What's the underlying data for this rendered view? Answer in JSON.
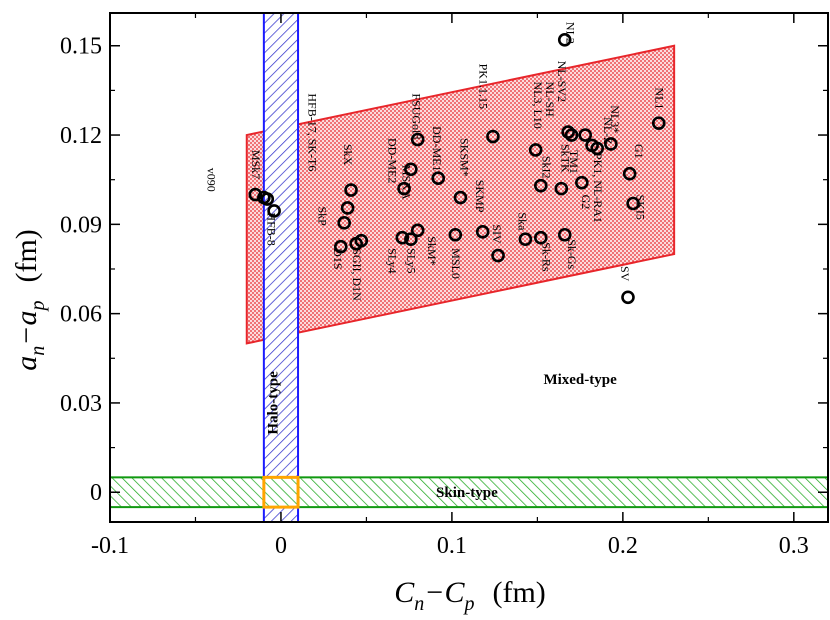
{
  "chart_data": {
    "type": "scatter",
    "title": "",
    "xlabel": {
      "main": "C",
      "sub_n": "n",
      "minus": "−",
      "main2": "C",
      "sub_p": "p",
      "unit": "(fm)"
    },
    "ylabel": {
      "main": "a",
      "sub_n": "n",
      "minus": "−",
      "main2": "a",
      "sub_p": "p",
      "unit": "(fm)"
    },
    "xlim": [
      -0.1,
      0.32
    ],
    "ylim": [
      -0.01,
      0.161
    ],
    "xticks": [
      -0.1,
      0,
      0.1,
      0.2,
      0.3
    ],
    "xtick_labels": [
      "-0.1",
      "0",
      "0.1",
      "0.2",
      "0.3"
    ],
    "yticks": [
      0,
      0.03,
      0.06,
      0.09,
      0.12,
      0.15
    ],
    "ytick_labels": [
      "0",
      "0.03",
      "0.06",
      "0.09",
      "0.12",
      "0.15"
    ],
    "grid": false,
    "colors": {
      "mixed_edge": "#e8262b",
      "mixed_fill": "#f4a3a6",
      "halo_edge": "#1a1aff",
      "halo_hatch": "#3333cc",
      "skin_edge": "#119911",
      "skin_hatch": "#22aa22",
      "overlap_edge": "#ffa500",
      "marker": "#000000"
    },
    "regions": [
      {
        "name": "Mixed-type",
        "label": "Mixed-type",
        "polygon": [
          [
            -0.02,
            0.05
          ],
          [
            -0.02,
            0.12
          ],
          [
            0.23,
            0.15
          ],
          [
            0.23,
            0.08
          ]
        ],
        "label_at": [
          0.175,
          0.038
        ]
      },
      {
        "name": "Halo-type",
        "label": "Halo-type",
        "x_range": [
          -0.01,
          0.01
        ],
        "label_at": [
          -0.005,
          0.03
        ]
      },
      {
        "name": "Skin-type",
        "label": "Skin-type",
        "y_range": [
          -0.005,
          0.005
        ],
        "label_at": [
          0.1,
          0
        ]
      },
      {
        "name": "overlap",
        "x_range": [
          -0.01,
          0.01
        ],
        "y_range": [
          -0.005,
          0.005
        ]
      }
    ],
    "points": [
      {
        "x": 0.166,
        "y": 0.152
      },
      {
        "x": 0.221,
        "y": 0.124
      },
      {
        "x": 0.124,
        "y": 0.1195
      },
      {
        "x": 0.168,
        "y": 0.121
      },
      {
        "x": 0.17,
        "y": 0.12
      },
      {
        "x": 0.178,
        "y": 0.12
      },
      {
        "x": 0.185,
        "y": 0.1155
      },
      {
        "x": 0.193,
        "y": 0.117
      },
      {
        "x": 0.182,
        "y": 0.1165
      },
      {
        "x": 0.149,
        "y": 0.115
      },
      {
        "x": 0.08,
        "y": 0.1185
      },
      {
        "x": 0.076,
        "y": 0.1085
      },
      {
        "x": 0.072,
        "y": 0.102
      },
      {
        "x": 0.092,
        "y": 0.1055
      },
      {
        "x": 0.105,
        "y": 0.099
      },
      {
        "x": 0.152,
        "y": 0.103
      },
      {
        "x": 0.176,
        "y": 0.104
      },
      {
        "x": 0.164,
        "y": 0.102
      },
      {
        "x": 0.204,
        "y": 0.107
      },
      {
        "x": 0.206,
        "y": 0.097
      },
      {
        "x": 0.203,
        "y": 0.0655
      },
      {
        "x": -0.015,
        "y": 0.1
      },
      {
        "x": -0.01,
        "y": 0.099
      },
      {
        "x": -0.008,
        "y": 0.0985
      },
      {
        "x": -0.004,
        "y": 0.0945
      },
      {
        "x": 0.041,
        "y": 0.1015
      },
      {
        "x": 0.039,
        "y": 0.0955
      },
      {
        "x": 0.037,
        "y": 0.0905
      },
      {
        "x": 0.035,
        "y": 0.0825
      },
      {
        "x": 0.044,
        "y": 0.0835
      },
      {
        "x": 0.047,
        "y": 0.0845
      },
      {
        "x": 0.071,
        "y": 0.0855
      },
      {
        "x": 0.076,
        "y": 0.085
      },
      {
        "x": 0.08,
        "y": 0.088
      },
      {
        "x": 0.102,
        "y": 0.0865
      },
      {
        "x": 0.118,
        "y": 0.0875
      },
      {
        "x": 0.127,
        "y": 0.0795
      },
      {
        "x": 0.143,
        "y": 0.085
      },
      {
        "x": 0.152,
        "y": 0.0855
      },
      {
        "x": 0.166,
        "y": 0.0865
      }
    ],
    "labels": [
      {
        "text": "NL2",
        "x": 0.167,
        "y": 0.158,
        "angle": 90
      },
      {
        "text": "NL1",
        "x": 0.219,
        "y": 0.136,
        "angle": 90
      },
      {
        "text": "PK1.1.15",
        "x": 0.116,
        "y": 0.144,
        "angle": 90
      },
      {
        "text": "NL-SV2",
        "x": 0.162,
        "y": 0.145,
        "angle": 90
      },
      {
        "text": "NL-SH",
        "x": 0.155,
        "y": 0.138,
        "angle": 90
      },
      {
        "text": "NL3, L10",
        "x": 0.148,
        "y": 0.138,
        "angle": 90
      },
      {
        "text": "NL3*",
        "x": 0.193,
        "y": 0.13,
        "angle": 90
      },
      {
        "text": "NL-Z",
        "x": 0.189,
        "y": 0.126,
        "angle": 90
      },
      {
        "text": "G1",
        "x": 0.207,
        "y": 0.117,
        "angle": 90
      },
      {
        "text": "PK1, NL-RA1",
        "x": 0.183,
        "y": 0.114,
        "angle": 90
      },
      {
        "text": "TM1",
        "x": 0.169,
        "y": 0.115,
        "angle": 90
      },
      {
        "text": "SkTK",
        "x": 0.164,
        "y": 0.117,
        "angle": 90
      },
      {
        "text": "G2",
        "x": 0.176,
        "y": 0.1,
        "angle": 90
      },
      {
        "text": "SkI2",
        "x": 0.153,
        "y": 0.113,
        "angle": 90
      },
      {
        "text": "SKI5",
        "x": 0.208,
        "y": 0.1,
        "angle": 90
      },
      {
        "text": "FSUGold",
        "x": 0.077,
        "y": 0.134,
        "angle": 90
      },
      {
        "text": "DD-ME1",
        "x": 0.089,
        "y": 0.123,
        "angle": 90
      },
      {
        "text": "DD-ME2",
        "x": 0.063,
        "y": 0.119,
        "angle": 90
      },
      {
        "text": "MSKA",
        "x": 0.071,
        "y": 0.11,
        "angle": 90
      },
      {
        "text": "SKSM*",
        "x": 0.105,
        "y": 0.119,
        "angle": 90
      },
      {
        "text": "SKMP",
        "x": 0.114,
        "y": 0.105,
        "angle": 90
      },
      {
        "text": "SIV",
        "x": 0.124,
        "y": 0.09,
        "angle": 90
      },
      {
        "text": "Ska",
        "x": 0.139,
        "y": 0.094,
        "angle": 90
      },
      {
        "text": "Sk-Rs",
        "x": 0.153,
        "y": 0.084,
        "angle": 90
      },
      {
        "text": "Sk-Gs",
        "x": 0.168,
        "y": 0.085,
        "angle": 90
      },
      {
        "text": "SV",
        "x": 0.199,
        "y": 0.076,
        "angle": 90
      },
      {
        "text": "HFB-17, SK-T6",
        "x": 0.016,
        "y": 0.134,
        "angle": 90
      },
      {
        "text": "SkX",
        "x": 0.037,
        "y": 0.117,
        "angle": 90
      },
      {
        "text": "MSk7",
        "x": -0.017,
        "y": 0.115,
        "angle": 90
      },
      {
        "text": "v090",
        "x": -0.043,
        "y": 0.109,
        "angle": 90
      },
      {
        "text": "SkP",
        "x": 0.022,
        "y": 0.096,
        "angle": 90
      },
      {
        "text": "D1S",
        "x": 0.031,
        "y": 0.082,
        "angle": 90
      },
      {
        "text": "SGII, D1N",
        "x": 0.042,
        "y": 0.082,
        "angle": 90
      },
      {
        "text": "HFB-8",
        "x": -0.008,
        "y": 0.094,
        "angle": 90
      },
      {
        "text": "SLy4",
        "x": 0.063,
        "y": 0.082,
        "angle": 90
      },
      {
        "text": "SLy5",
        "x": 0.074,
        "y": 0.082,
        "angle": 90
      },
      {
        "text": "SkM*",
        "x": 0.086,
        "y": 0.086,
        "angle": 90
      },
      {
        "text": "MSL0",
        "x": 0.1,
        "y": 0.082,
        "angle": 90
      }
    ]
  }
}
